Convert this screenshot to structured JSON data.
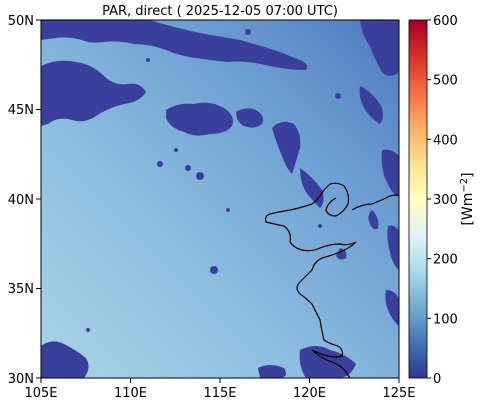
{
  "title": "PAR, direct ( 2025-12-05 07:00 UTC)",
  "map": {
    "lon_range": [
      105,
      125
    ],
    "lat_range": [
      30,
      50
    ],
    "x_ticks": [
      "105E",
      "110E",
      "115E",
      "120E",
      "125E"
    ],
    "y_ticks": [
      "50N",
      "45N",
      "40N",
      "35N",
      "30N"
    ]
  },
  "colorbar": {
    "label_main": "[Wm",
    "label_sup": "−2",
    "label_end": "]",
    "ticks": [
      "600",
      "500",
      "400",
      "300",
      "200",
      "100",
      "0"
    ],
    "range": [
      0,
      600
    ],
    "colormap": "RdYlBu_r",
    "colors": [
      "#313695",
      "#4575b4",
      "#74add1",
      "#abd9e9",
      "#e0f3f8",
      "#ffffbf",
      "#fee090",
      "#fdae61",
      "#f46d43",
      "#d73027",
      "#a50026"
    ]
  },
  "colors": {
    "cloud": "#3a3f9c",
    "field_dark": "#5680c3",
    "field_light": "#a6d1e6",
    "coastline": "#000000"
  }
}
